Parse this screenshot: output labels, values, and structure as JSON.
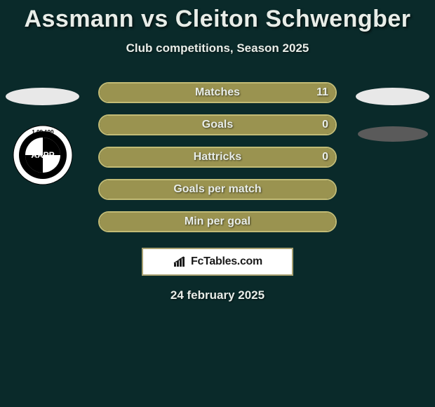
{
  "title": "Assmann vs Cleiton Schwengber",
  "subtitle": "Club competitions, Season 2025",
  "date": "24 february 2025",
  "badge_text": "FcTables.com",
  "colors": {
    "background": "#0a2a2a",
    "bar_fill": "#9a9350",
    "bar_border": "#c2bb75",
    "text": "#e8ede8",
    "badge_border": "#a8a070",
    "badge_bg": "#ffffff",
    "ellipse_light": "#e8e8e8",
    "ellipse_dark": "#5a5a5a"
  },
  "typography": {
    "title_fontsize": 34,
    "subtitle_fontsize": 17,
    "stat_label_fontsize": 16,
    "date_fontsize": 17
  },
  "stats": [
    {
      "label": "Matches",
      "value_right": "11",
      "fill_pct": 100
    },
    {
      "label": "Goals",
      "value_right": "0",
      "fill_pct": 100
    },
    {
      "label": "Hattricks",
      "value_right": "0",
      "fill_pct": 100
    },
    {
      "label": "Goals per match",
      "value_right": "",
      "fill_pct": 100
    },
    {
      "label": "Min per goal",
      "value_right": "",
      "fill_pct": 100
    }
  ],
  "club_badge": {
    "top_text": "1.08.190",
    "main_text": "AAPP"
  }
}
